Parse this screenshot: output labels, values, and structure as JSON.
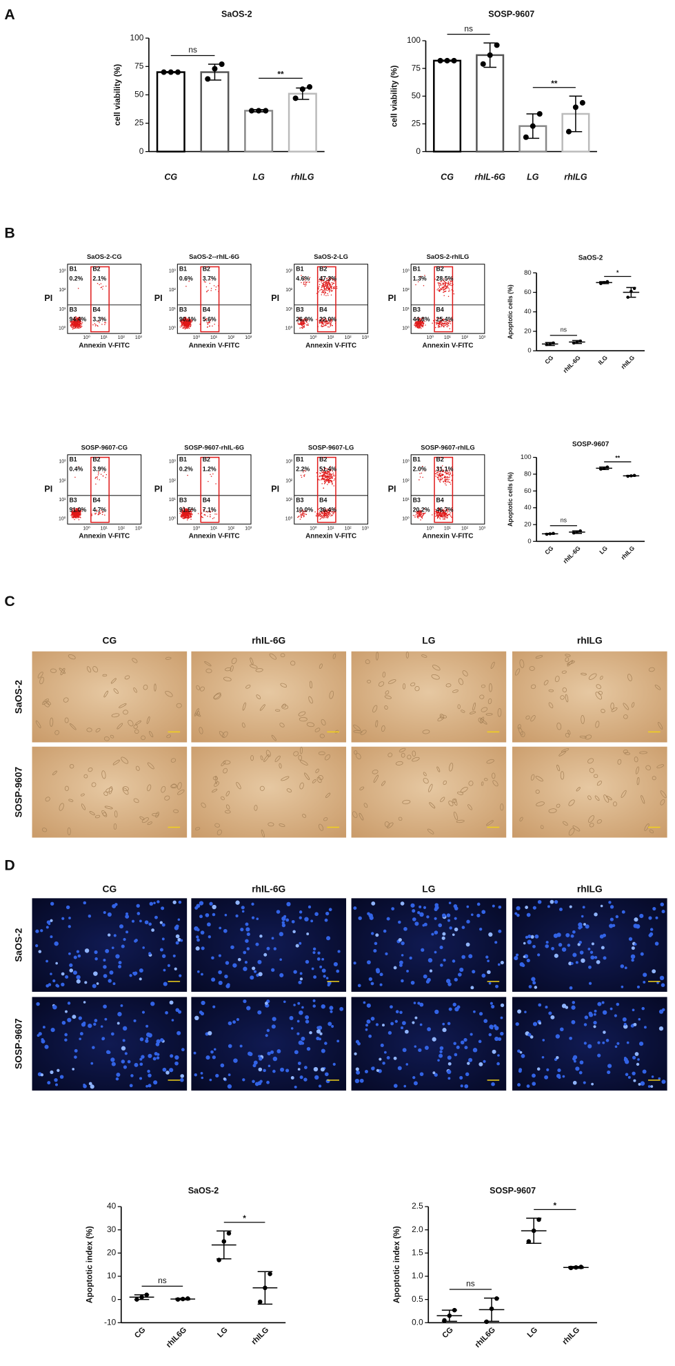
{
  "chart_data": [
    {
      "type": "bar",
      "title": "SaOS-2",
      "ylabel": "cell viability (%)",
      "categories": [
        "CG",
        null,
        "LG",
        "rhILG"
      ],
      "values": [
        70,
        70,
        36,
        51
      ],
      "errors": [
        0.5,
        7,
        1,
        5
      ],
      "points": [
        [
          70,
          70,
          70
        ],
        [
          64,
          73,
          77
        ],
        [
          36,
          36,
          36
        ],
        [
          47,
          55,
          57
        ]
      ],
      "colors": [
        "#000000",
        "#555555",
        "#888888",
        "#bbbbbb"
      ],
      "ylim": [
        0,
        100
      ],
      "yticks": [
        0,
        25,
        50,
        75,
        100
      ],
      "annotations": [
        "ns",
        "**"
      ]
    },
    {
      "type": "bar",
      "title": "SOSP-9607",
      "ylabel": "cell viability (%)",
      "categories": [
        "CG",
        "rhIL-6G",
        "LG",
        "rhILG"
      ],
      "values": [
        82,
        87,
        23,
        34
      ],
      "errors": [
        0.5,
        11,
        11,
        16
      ],
      "points": [
        [
          82,
          82,
          82
        ],
        [
          79,
          87,
          96
        ],
        [
          13,
          23,
          34
        ],
        [
          18,
          40,
          44
        ]
      ],
      "colors": [
        "#000000",
        "#555555",
        "#888888",
        "#bbbbbb"
      ],
      "ylim": [
        0,
        100
      ],
      "yticks": [
        0,
        25,
        50,
        75,
        100
      ],
      "annotations": [
        "ns",
        "**"
      ]
    },
    {
      "type": "dot",
      "title": "SaOS-2",
      "ylabel": "Apoptotic cells (%)",
      "categories": [
        "CG",
        "rhIL-6G",
        "ILG",
        "rhILG"
      ],
      "values": [
        7,
        9,
        70,
        60
      ],
      "errors": [
        1.5,
        1.5,
        1,
        5
      ],
      "points": [
        [
          6.5,
          7,
          8
        ],
        [
          8,
          9,
          10
        ],
        [
          69,
          70,
          71
        ],
        [
          55,
          61,
          64
        ]
      ],
      "ylim": [
        0,
        80
      ],
      "yticks": [
        0,
        20,
        40,
        60,
        80
      ],
      "annotations": [
        "ns",
        "*"
      ]
    },
    {
      "type": "dot",
      "title": "SOSP-9607",
      "ylabel": "Apoptotic cells (%)",
      "categories": [
        "CG",
        "rhIL-6G",
        "LG",
        "rhILG"
      ],
      "values": [
        9,
        11,
        87,
        78
      ],
      "errors": [
        0.5,
        1.5,
        1.5,
        0.5
      ],
      "points": [
        [
          8.5,
          9,
          9.5
        ],
        [
          10,
          11,
          12.5
        ],
        [
          86,
          87,
          88.5
        ],
        [
          77.5,
          78,
          78.5
        ]
      ],
      "ylim": [
        0,
        100
      ],
      "yticks": [
        0,
        20,
        40,
        60,
        80,
        100
      ],
      "annotations": [
        "ns",
        "**"
      ]
    },
    {
      "type": "dot",
      "title": "SaOS-2",
      "ylabel": "Apoptotic index (%)",
      "categories": [
        "CG",
        "rhIL6G",
        "LG",
        "rhILG"
      ],
      "values": [
        1,
        0.2,
        23.5,
        5
      ],
      "errors": [
        1,
        0.3,
        6,
        7
      ],
      "points": [
        [
          0,
          1,
          2
        ],
        [
          0,
          0.2,
          0.4
        ],
        [
          17,
          25,
          28.5
        ],
        [
          -1,
          5,
          11
        ]
      ],
      "ylim": [
        -10,
        40
      ],
      "yticks": [
        -10,
        0,
        10,
        20,
        30,
        40
      ],
      "annotations": [
        "ns",
        "*"
      ]
    },
    {
      "type": "dot",
      "title": "SOSP-9607",
      "ylabel": "Apoptotic index (%)",
      "categories": [
        "CG",
        "rhIL6G",
        "LG",
        "rhILG"
      ],
      "values": [
        0.15,
        0.28,
        1.98,
        1.19
      ],
      "errors": [
        0.12,
        0.25,
        0.27,
        0.02
      ],
      "points": [
        [
          0.05,
          0.15,
          0.27
        ],
        [
          0.02,
          0.3,
          0.52
        ],
        [
          1.75,
          1.98,
          2.22
        ],
        [
          1.18,
          1.19,
          1.2
        ]
      ],
      "ylim": [
        0,
        2.5
      ],
      "yticks": [
        {
          "value": 0,
          "label": "0.0"
        },
        0.5,
        {
          "value": 1,
          "label": "1.0"
        },
        1.5,
        {
          "value": 2,
          "label": "2.0"
        },
        2.5
      ],
      "annotations": [
        "ns",
        "*"
      ]
    }
  ],
  "figure": {
    "panels": [
      "A",
      "B",
      "C",
      "D"
    ],
    "flow_axes": {
      "x_label": "Annexin V-FITC",
      "y_label": "PI",
      "x_ticks": [
        "10⁰",
        "10¹",
        "10²",
        "10³"
      ],
      "y_ticks": [
        "10³",
        "10²",
        "10¹",
        "10⁰"
      ]
    },
    "flow": [
      {
        "title": "SaOS-2-CG",
        "quadrants": [
          {
            "name": "B1",
            "value": "0.2%"
          },
          {
            "name": "B2",
            "value": "2.1%"
          },
          {
            "name": "B3",
            "value": "94.4%"
          },
          {
            "name": "B4",
            "value": "3.3%"
          }
        ]
      },
      {
        "title": "SaOS-2--rhIL-6G",
        "quadrants": [
          {
            "name": "B1",
            "value": "0.6%"
          },
          {
            "name": "B2",
            "value": "3.7%"
          },
          {
            "name": "B3",
            "value": "90.1%"
          },
          {
            "name": "B4",
            "value": "5.6%"
          }
        ]
      },
      {
        "title": "SaOS-2-LG",
        "quadrants": [
          {
            "name": "B1",
            "value": "4.6%"
          },
          {
            "name": "B2",
            "value": "47.3%"
          },
          {
            "name": "B3",
            "value": "26.0%"
          },
          {
            "name": "B4",
            "value": "22.0%"
          }
        ]
      },
      {
        "title": "SaOS-2-rhILG",
        "quadrants": [
          {
            "name": "B1",
            "value": "1.3%"
          },
          {
            "name": "B2",
            "value": "28.5%"
          },
          {
            "name": "B3",
            "value": "44.8%"
          },
          {
            "name": "B4",
            "value": "25.4%"
          }
        ]
      },
      {
        "title": "SOSP-9607-CG",
        "quadrants": [
          {
            "name": "B1",
            "value": "0.4%"
          },
          {
            "name": "B2",
            "value": "3.9%"
          },
          {
            "name": "B3",
            "value": "91.0%"
          },
          {
            "name": "B4",
            "value": "4.7%"
          }
        ]
      },
      {
        "title": "SOSP-9607-rhIL-6G",
        "quadrants": [
          {
            "name": "B1",
            "value": "0.2%"
          },
          {
            "name": "B2",
            "value": "1.2%"
          },
          {
            "name": "B3",
            "value": "91.5%"
          },
          {
            "name": "B4",
            "value": "7.1%"
          }
        ]
      },
      {
        "title": "SOSP-9607-LG",
        "quadrants": [
          {
            "name": "B1",
            "value": "2.2%"
          },
          {
            "name": "B2",
            "value": "51.4%"
          },
          {
            "name": "B3",
            "value": "10.0%"
          },
          {
            "name": "B4",
            "value": "36.4%"
          }
        ]
      },
      {
        "title": "SOSP-9607-rhILG",
        "quadrants": [
          {
            "name": "B1",
            "value": "2.0%"
          },
          {
            "name": "B2",
            "value": "31.1%"
          },
          {
            "name": "B3",
            "value": "20.2%"
          },
          {
            "name": "B4",
            "value": "46.7%"
          }
        ]
      }
    ],
    "micrographs": [
      {
        "columns": [
          "CG",
          "rhIL-6G",
          "LG",
          "rhILG"
        ],
        "rows": [
          "SaOS-2",
          "SOSP-9607"
        ]
      },
      {
        "columns": [
          "CG",
          "rhIL-6G",
          "LG",
          "rhILG"
        ],
        "rows": [
          "SaOS-2",
          "SOSP-9607"
        ]
      }
    ]
  }
}
